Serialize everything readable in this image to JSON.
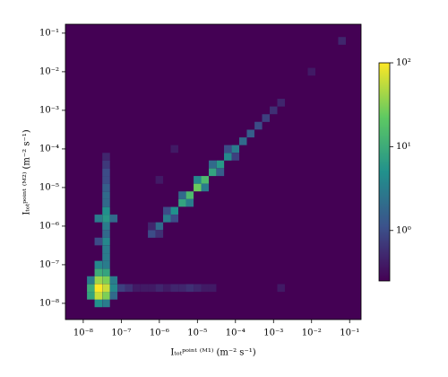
{
  "chart_data": {
    "type": "hist2d",
    "xlabel": "Iₜₒₜᵖᵒⁱⁿᵗ ⁽ᴹ¹⁾ (m⁻² s⁻¹)",
    "ylabel": "Iₜₒₜᵖᵒⁱⁿᵗ ⁽ᴹ²⁾ (m⁻² s⁻¹)",
    "xscale": "log",
    "yscale": "log",
    "xlim": [
      3.4e-09,
      0.2
    ],
    "ylim": [
      3.8e-09,
      0.17
    ],
    "xticks": [
      {
        "value": 1e-08,
        "label": "10⁻⁸"
      },
      {
        "value": 1e-07,
        "label": "10⁻⁷"
      },
      {
        "value": 1e-06,
        "label": "10⁻⁶"
      },
      {
        "value": 1e-05,
        "label": "10⁻⁵"
      },
      {
        "value": 0.0001,
        "label": "10⁻⁴"
      },
      {
        "value": 0.001,
        "label": "10⁻³"
      },
      {
        "value": 0.01,
        "label": "10⁻²"
      },
      {
        "value": 0.1,
        "label": "10⁻¹"
      }
    ],
    "yticks": [
      {
        "value": 1e-08,
        "label": "10⁻⁸"
      },
      {
        "value": 1e-07,
        "label": "10⁻⁷"
      },
      {
        "value": 1e-06,
        "label": "10⁻⁶"
      },
      {
        "value": 1e-05,
        "label": "10⁻⁵"
      },
      {
        "value": 0.0001,
        "label": "10⁻⁴"
      },
      {
        "value": 0.001,
        "label": "10⁻³"
      },
      {
        "value": 0.01,
        "label": "10⁻²"
      },
      {
        "value": 0.1,
        "label": "10⁻¹"
      }
    ],
    "colormap": [
      "#440154",
      "#3b528b",
      "#21918c",
      "#5ec962",
      "#fde725"
    ],
    "clim": [
      0.25,
      100
    ],
    "cticks": [
      {
        "value": 1,
        "label": "10⁰"
      },
      {
        "value": 10,
        "label": "10¹"
      },
      {
        "value": 100,
        "label": "10²"
      }
    ],
    "x": [
      6.3e-07,
      1e-06,
      1.58e-06,
      2.5e-06,
      4e-06,
      6.3e-06,
      1e-05,
      1.58e-05,
      2.5e-05,
      4e-05,
      6.3e-05,
      0.0001,
      0.000158,
      0.00025,
      0.0004,
      0.00063,
      0.001,
      0.00158,
      6.3e-07,
      1.58e-06,
      4e-06,
      1e-05,
      2.5e-05,
      6.3e-05,
      1e-06,
      2.5e-06,
      6.3e-06,
      1.58e-05,
      4e-05,
      0.0001,
      2.5e-08,
      2.5e-08,
      2.5e-08,
      2.5e-08,
      2.5e-08,
      2.5e-08,
      4e-08,
      4e-08,
      4e-08,
      4e-08,
      4e-08,
      4e-08,
      1.58e-08,
      1.58e-08,
      1.58e-08,
      6.3e-08,
      6.3e-08,
      6.3e-08,
      4e-08,
      4e-08,
      4e-08,
      4e-08,
      4e-08,
      4e-08,
      4e-08,
      4e-08,
      4e-08,
      4e-08,
      4e-08,
      4e-08,
      4e-08,
      4e-08,
      2.5e-08,
      6.3e-08,
      2.5e-08,
      1e-07,
      1.58e-07,
      2.5e-07,
      4e-07,
      6.3e-07,
      1e-06,
      1.58e-06,
      2.5e-06,
      4e-06,
      6.3e-06,
      1e-05,
      1.58e-05,
      2.5e-05,
      1e-06,
      0.063,
      0.01,
      0.00158,
      2.5e-06
    ],
    "y": [
      6.3e-07,
      1e-06,
      1.58e-06,
      2.5e-06,
      4e-06,
      6.3e-06,
      1e-05,
      1.58e-05,
      2.5e-05,
      4e-05,
      6.3e-05,
      0.0001,
      0.000158,
      0.00025,
      0.0004,
      0.00063,
      0.001,
      0.00158,
      1e-06,
      2.5e-06,
      6.3e-06,
      1.58e-05,
      4e-05,
      0.0001,
      6.3e-07,
      1.58e-06,
      4e-06,
      1e-05,
      2.5e-05,
      6.3e-05,
      1e-08,
      1.58e-08,
      2.5e-08,
      4e-08,
      6.3e-08,
      1e-07,
      1e-08,
      1.58e-08,
      2.5e-08,
      4e-08,
      6.3e-08,
      1e-07,
      1.58e-08,
      2.5e-08,
      4e-08,
      1.58e-08,
      2.5e-08,
      4e-08,
      1.58e-07,
      2.5e-07,
      4e-07,
      6.3e-07,
      1e-06,
      1.58e-06,
      2.5e-06,
      4e-06,
      6.3e-06,
      1e-05,
      1.58e-05,
      2.5e-05,
      4e-05,
      6.3e-05,
      1.58e-06,
      1.58e-06,
      4e-07,
      2.5e-08,
      2.5e-08,
      2.5e-08,
      2.5e-08,
      2.5e-08,
      2.5e-08,
      2.5e-08,
      2.5e-08,
      2.5e-08,
      2.5e-08,
      2.5e-08,
      2.5e-08,
      2.5e-08,
      1.58e-05,
      0.063,
      0.01,
      2.5e-08,
      0.0001
    ],
    "values": [
      1,
      2,
      3,
      5,
      8,
      15,
      25,
      15,
      8,
      6,
      4,
      3,
      2,
      1.5,
      1,
      0.8,
      0.6,
      0.5,
      0.5,
      1,
      2,
      4,
      2,
      1,
      0.6,
      1,
      3,
      3,
      1.5,
      0.8,
      5,
      60,
      100,
      40,
      10,
      4,
      3,
      30,
      60,
      30,
      8,
      3,
      8,
      10,
      3,
      2,
      4,
      3,
      3,
      3,
      4,
      2,
      3,
      6,
      5,
      2,
      2,
      1.5,
      1,
      1,
      0.7,
      0.5,
      3,
      2,
      1,
      0.8,
      0.6,
      0.4,
      0.4,
      0.4,
      0.5,
      0.4,
      0.5,
      0.5,
      0.6,
      0.5,
      0.4,
      0.4,
      0.4,
      0.5,
      0.4,
      0.4,
      0.4
    ]
  }
}
